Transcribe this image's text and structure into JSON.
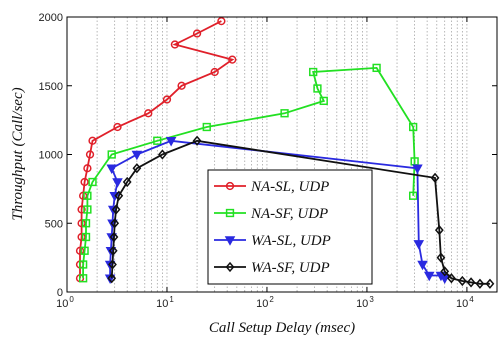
{
  "chart_data": {
    "type": "line",
    "xlabel": "Call Setup Delay (msec)",
    "ylabel": "Throughput (Call/sec)",
    "xscale": "log",
    "xlim": [
      1,
      20000
    ],
    "ylim": [
      0,
      2000
    ],
    "x_ticks": [
      {
        "value": 1,
        "base": "10",
        "exp": "0"
      },
      {
        "value": 10,
        "base": "10",
        "exp": "1"
      },
      {
        "value": 100,
        "base": "10",
        "exp": "2"
      },
      {
        "value": 1000,
        "base": "10",
        "exp": "3"
      },
      {
        "value": 10000,
        "base": "10",
        "exp": "4"
      }
    ],
    "y_ticks": [
      {
        "value": 0,
        "label": "0"
      },
      {
        "value": 500,
        "label": "500"
      },
      {
        "value": 1000,
        "label": "1000"
      },
      {
        "value": 1500,
        "label": "1500"
      },
      {
        "value": 2000,
        "label": "2000"
      }
    ],
    "grid": "dotted vertical minor grid",
    "legend_position": "center",
    "series": [
      {
        "name": "NA-SL, UDP",
        "color": "#e0202a",
        "marker": "circle",
        "points": [
          {
            "x": 1.35,
            "y": 100
          },
          {
            "x": 1.35,
            "y": 200
          },
          {
            "x": 1.35,
            "y": 300
          },
          {
            "x": 1.4,
            "y": 400
          },
          {
            "x": 1.4,
            "y": 500
          },
          {
            "x": 1.4,
            "y": 600
          },
          {
            "x": 1.45,
            "y": 700
          },
          {
            "x": 1.5,
            "y": 800
          },
          {
            "x": 1.6,
            "y": 900
          },
          {
            "x": 1.7,
            "y": 1000
          },
          {
            "x": 1.8,
            "y": 1100
          },
          {
            "x": 3.2,
            "y": 1200
          },
          {
            "x": 6.5,
            "y": 1300
          },
          {
            "x": 10,
            "y": 1400
          },
          {
            "x": 14,
            "y": 1500
          },
          {
            "x": 30,
            "y": 1600
          },
          {
            "x": 45,
            "y": 1690
          },
          {
            "x": 12,
            "y": 1800
          },
          {
            "x": 20,
            "y": 1880
          },
          {
            "x": 35,
            "y": 1970
          }
        ]
      },
      {
        "name": "NA-SF, UDP",
        "color": "#22e022",
        "marker": "square",
        "points": [
          {
            "x": 1.45,
            "y": 100
          },
          {
            "x": 1.45,
            "y": 200
          },
          {
            "x": 1.5,
            "y": 300
          },
          {
            "x": 1.55,
            "y": 400
          },
          {
            "x": 1.55,
            "y": 500
          },
          {
            "x": 1.6,
            "y": 600
          },
          {
            "x": 1.6,
            "y": 700
          },
          {
            "x": 1.8,
            "y": 800
          },
          {
            "x": 2.8,
            "y": 1000
          },
          {
            "x": 8,
            "y": 1100
          },
          {
            "x": 25,
            "y": 1200
          },
          {
            "x": 150,
            "y": 1300
          },
          {
            "x": 370,
            "y": 1390
          },
          {
            "x": 320,
            "y": 1480
          },
          {
            "x": 290,
            "y": 1600
          },
          {
            "x": 1250,
            "y": 1630
          },
          {
            "x": 2900,
            "y": 1200
          },
          {
            "x": 3000,
            "y": 950
          },
          {
            "x": 2900,
            "y": 700
          }
        ]
      },
      {
        "name": "WA-SL, UDP",
        "color": "#2a2ae0",
        "marker": "triangle-down",
        "points": [
          {
            "x": 2.7,
            "y": 100
          },
          {
            "x": 2.7,
            "y": 200
          },
          {
            "x": 2.75,
            "y": 300
          },
          {
            "x": 2.8,
            "y": 400
          },
          {
            "x": 2.85,
            "y": 500
          },
          {
            "x": 2.9,
            "y": 600
          },
          {
            "x": 3.0,
            "y": 700
          },
          {
            "x": 3.2,
            "y": 800
          },
          {
            "x": 2.8,
            "y": 900
          },
          {
            "x": 5,
            "y": 1000
          },
          {
            "x": 11,
            "y": 1100
          },
          {
            "x": 3200,
            "y": 900
          },
          {
            "x": 3300,
            "y": 350
          },
          {
            "x": 3600,
            "y": 200
          },
          {
            "x": 4200,
            "y": 120
          },
          {
            "x": 5500,
            "y": 120
          },
          {
            "x": 6000,
            "y": 100
          }
        ]
      },
      {
        "name": "WA-SF, UDP",
        "color": "#111111",
        "marker": "diamond",
        "points": [
          {
            "x": 2.8,
            "y": 100
          },
          {
            "x": 2.85,
            "y": 200
          },
          {
            "x": 2.9,
            "y": 300
          },
          {
            "x": 2.95,
            "y": 400
          },
          {
            "x": 3.0,
            "y": 500
          },
          {
            "x": 3.1,
            "y": 600
          },
          {
            "x": 3.3,
            "y": 700
          },
          {
            "x": 4.0,
            "y": 800
          },
          {
            "x": 5,
            "y": 900
          },
          {
            "x": 9,
            "y": 1000
          },
          {
            "x": 20,
            "y": 1100
          },
          {
            "x": 4800,
            "y": 830
          },
          {
            "x": 5300,
            "y": 450
          },
          {
            "x": 5500,
            "y": 250
          },
          {
            "x": 6000,
            "y": 150
          },
          {
            "x": 7000,
            "y": 100
          },
          {
            "x": 9000,
            "y": 80
          },
          {
            "x": 11000,
            "y": 70
          },
          {
            "x": 13500,
            "y": 60
          },
          {
            "x": 17000,
            "y": 60
          }
        ]
      }
    ]
  }
}
